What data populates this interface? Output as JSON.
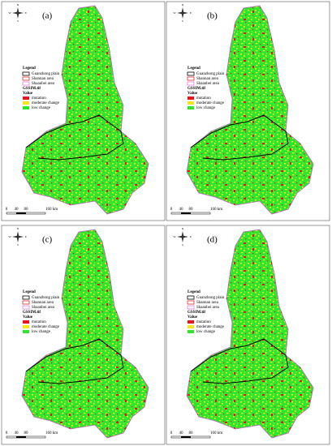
{
  "panels": [
    {
      "label": "(a)"
    },
    {
      "label": "(b)"
    },
    {
      "label": "(c)"
    },
    {
      "label": "(d)"
    }
  ],
  "legend": {
    "title": "Legend",
    "areas": [
      {
        "label": "Guanzhong plain",
        "color": "#000000"
      },
      {
        "label": "Shannan area",
        "color": "#e03030"
      },
      {
        "label": "Shaanbei area",
        "color": "#e080e0"
      }
    ],
    "raster_title": "GSSIM.tif",
    "value_title": "Value",
    "values": [
      {
        "label": "mutation",
        "color": "#e8141e"
      },
      {
        "label": "moderate change",
        "color": "#f5e61e"
      },
      {
        "label": "low change",
        "color": "#2ee62e"
      }
    ]
  },
  "scale": [
    "0",
    "40",
    "80",
    "160 km"
  ],
  "compass": [
    "N",
    "E",
    "S",
    "W"
  ]
}
